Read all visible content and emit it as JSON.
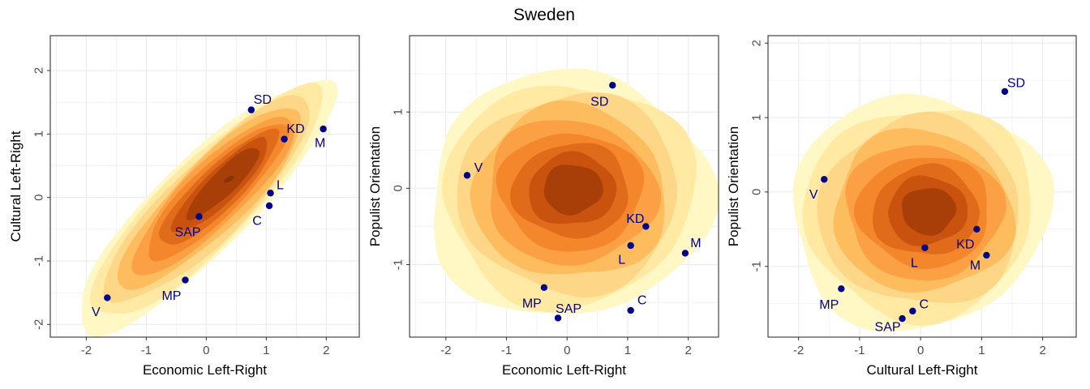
{
  "title": "Sweden",
  "colors": {
    "point": "#00008b",
    "panel_border": "#333333",
    "grid": "#ebebeb",
    "density_levels": [
      "#fff7c4",
      "#ffe9a3",
      "#fed687",
      "#fdbc5e",
      "#fba044",
      "#f4862c",
      "#e06b1a",
      "#c9520f",
      "#a83f09"
    ]
  },
  "chart_data": [
    {
      "type": "scatter",
      "overlay": "density-contour",
      "xlabel": "Economic Left-Right",
      "ylabel": "Cultural Left-Right",
      "xlim": [
        -2.6,
        2.55
      ],
      "ylim": [
        -2.2,
        2.55
      ],
      "xticks": [
        -2,
        -1,
        0,
        1,
        2
      ],
      "yticks": [
        -2,
        -1,
        0,
        1,
        2
      ],
      "points": [
        {
          "label": "SD",
          "x": 0.75,
          "y": 1.38
        },
        {
          "label": "KD",
          "x": 1.3,
          "y": 0.92
        },
        {
          "label": "M",
          "x": 1.95,
          "y": 1.08
        },
        {
          "label": "L",
          "x": 1.07,
          "y": 0.07
        },
        {
          "label": "C",
          "x": 1.05,
          "y": -0.13
        },
        {
          "label": "SAP",
          "x": -0.12,
          "y": -0.3
        },
        {
          "label": "MP",
          "x": -0.35,
          "y": -1.3
        },
        {
          "label": "V",
          "x": -1.65,
          "y": -1.58
        }
      ],
      "density": {
        "ridge": [
          [
            -2.0,
            -1.95
          ],
          [
            -1.3,
            -1.25
          ],
          [
            -0.5,
            -0.5
          ],
          [
            0.2,
            0.25
          ],
          [
            1.0,
            0.9
          ],
          [
            1.9,
            1.75
          ]
        ],
        "hotspots": [
          [
            0.35,
            0.3
          ]
        ]
      }
    },
    {
      "type": "scatter",
      "overlay": "density-contour",
      "xlabel": "Economic Left-Right",
      "ylabel": "Populist Orientation",
      "xlim": [
        -2.6,
        2.5
      ],
      "ylim": [
        -1.95,
        2.0
      ],
      "xticks": [
        -2,
        -1,
        0,
        1,
        2
      ],
      "yticks": [
        -1,
        0,
        1
      ],
      "points": [
        {
          "label": "SD",
          "x": 0.75,
          "y": 1.35
        },
        {
          "label": "V",
          "x": -1.65,
          "y": 0.17
        },
        {
          "label": "KD",
          "x": 1.3,
          "y": -0.5
        },
        {
          "label": "L",
          "x": 1.05,
          "y": -0.75
        },
        {
          "label": "M",
          "x": 1.95,
          "y": -0.85
        },
        {
          "label": "MP",
          "x": -0.38,
          "y": -1.3
        },
        {
          "label": "SAP",
          "x": -0.15,
          "y": -1.7
        },
        {
          "label": "C",
          "x": 1.05,
          "y": -1.6
        }
      ],
      "density": {
        "center": [
          0.1,
          0.0
        ]
      }
    },
    {
      "type": "scatter",
      "overlay": "density-contour",
      "xlabel": "Cultural Left-Right",
      "ylabel": "Populist Orientation",
      "xlim": [
        -2.5,
        2.55
      ],
      "ylim": [
        -1.95,
        2.1
      ],
      "xticks": [
        -2,
        -1,
        0,
        1,
        2
      ],
      "yticks": [
        -1,
        0,
        1,
        2
      ],
      "points": [
        {
          "label": "SD",
          "x": 1.38,
          "y": 1.35
        },
        {
          "label": "V",
          "x": -1.58,
          "y": 0.17
        },
        {
          "label": "KD",
          "x": 0.92,
          "y": -0.5
        },
        {
          "label": "L",
          "x": 0.07,
          "y": -0.75
        },
        {
          "label": "M",
          "x": 1.08,
          "y": -0.85
        },
        {
          "label": "MP",
          "x": -1.3,
          "y": -1.3
        },
        {
          "label": "C",
          "x": -0.13,
          "y": -1.6
        },
        {
          "label": "SAP",
          "x": -0.3,
          "y": -1.7
        }
      ],
      "density": {
        "center": [
          0.15,
          -0.25
        ]
      }
    }
  ]
}
